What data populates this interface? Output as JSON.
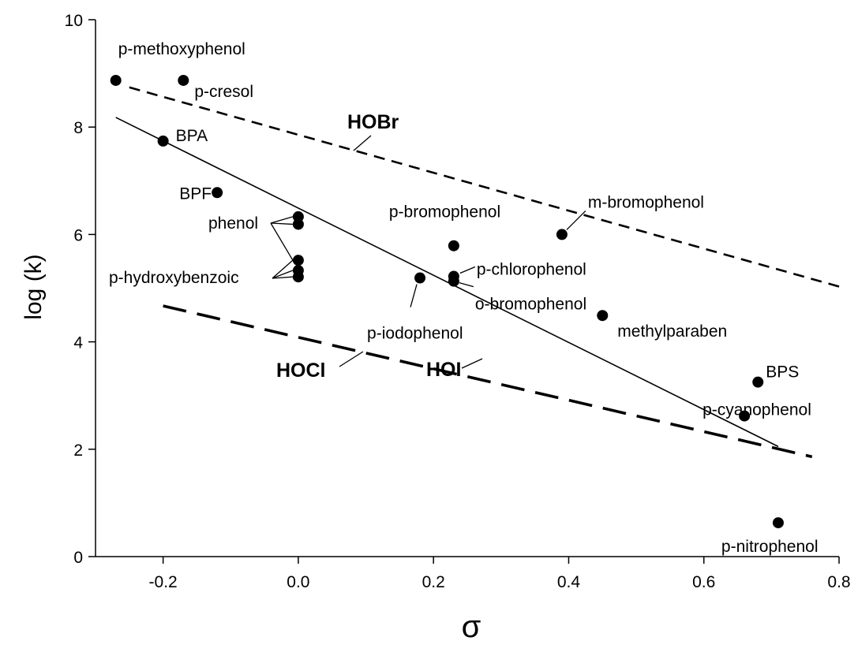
{
  "chart_data": {
    "type": "scatter",
    "title": "",
    "xlabel": "σ",
    "ylabel": "log (k)",
    "xlim": [
      -0.3,
      0.8
    ],
    "ylim": [
      0,
      10
    ],
    "xticks": [
      -0.2,
      0.0,
      0.2,
      0.4,
      0.6,
      0.8
    ],
    "xtick_labels": [
      "-0.2",
      "0.0",
      "0.2",
      "0.4",
      "0.6",
      "0.8"
    ],
    "yticks": [
      0,
      2,
      4,
      6,
      8,
      10
    ],
    "ytick_labels": [
      "0",
      "2",
      "4",
      "6",
      "8",
      "10"
    ],
    "grid": false,
    "points": [
      {
        "x": -0.27,
        "y": 8.87,
        "label": "p-methoxyphenol"
      },
      {
        "x": -0.17,
        "y": 8.87,
        "label": "p-cresol"
      },
      {
        "x": -0.2,
        "y": 7.74,
        "label": "BPA"
      },
      {
        "x": -0.12,
        "y": 6.78,
        "label": "BPF"
      },
      {
        "x": 0.0,
        "y": 6.33,
        "label": ""
      },
      {
        "x": 0.0,
        "y": 6.19,
        "label": ""
      },
      {
        "x": 0.0,
        "y": 5.52,
        "label": ""
      },
      {
        "x": 0.0,
        "y": 5.33,
        "label": ""
      },
      {
        "x": 0.0,
        "y": 5.21,
        "label": ""
      },
      {
        "x": 0.18,
        "y": 5.19,
        "label": "p-iodophenol"
      },
      {
        "x": 0.23,
        "y": 5.79,
        "label": "p-bromophenol"
      },
      {
        "x": 0.23,
        "y": 5.22,
        "label": "p-chlorophenol"
      },
      {
        "x": 0.23,
        "y": 5.13,
        "label": "o-bromophenol"
      },
      {
        "x": 0.39,
        "y": 6.0,
        "label": "m-bromophenol"
      },
      {
        "x": 0.45,
        "y": 4.49,
        "label": "methylparaben"
      },
      {
        "x": 0.66,
        "y": 2.62,
        "label": "p-cyanophenol"
      },
      {
        "x": 0.68,
        "y": 3.25,
        "label": "BPS"
      },
      {
        "x": 0.71,
        "y": 0.63,
        "label": "p-nitrophenol"
      }
    ],
    "group_labels": [
      {
        "label": "phenol"
      },
      {
        "label": "p-hydroxybenzoic"
      }
    ],
    "fit_lines": [
      {
        "name": "HOBr",
        "style": "short-dash",
        "x": [
          -0.25,
          0.8
        ],
        "y": [
          8.74,
          5.03
        ]
      },
      {
        "name": "HOI",
        "style": "solid",
        "x": [
          -0.27,
          0.71
        ],
        "y": [
          8.18,
          2.05
        ]
      },
      {
        "name": "HOCl",
        "style": "long-dash",
        "x": [
          -0.2,
          0.76
        ],
        "y": [
          4.67,
          1.86
        ]
      }
    ]
  }
}
